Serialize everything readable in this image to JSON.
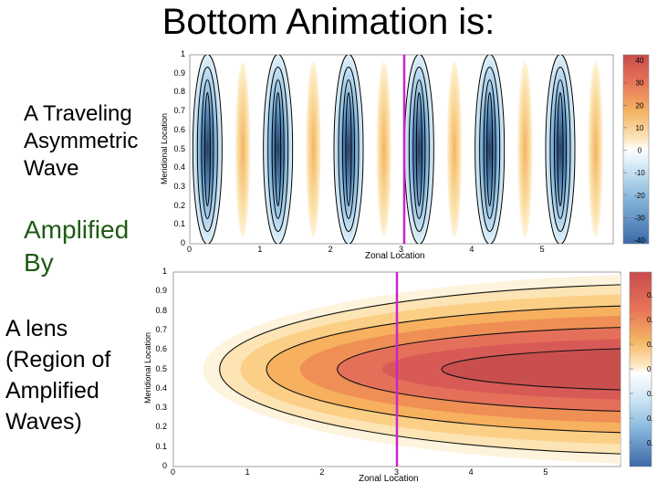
{
  "slide": {
    "title": "Bottom Animation is:",
    "wave_lines": [
      "A Traveling",
      "Asymmetric",
      "Wave"
    ],
    "amplified_lines": [
      "Amplified",
      "By"
    ],
    "lens_lines": [
      "A lens",
      "(Region of",
      "Amplified",
      "Waves)"
    ]
  },
  "colors": {
    "green_text": "#1e5a14",
    "marker": "#cc22cc"
  },
  "top_plot": {
    "xlabel": "Zonal Location",
    "ylabel": "Meridional Location",
    "x_ticks": [
      "0",
      "1",
      "2",
      "3",
      "4",
      "5"
    ],
    "y_ticks": [
      "0",
      "0.1",
      "0.2",
      "0.3",
      "0.4",
      "0.5",
      "0.6",
      "0.7",
      "0.8",
      "0.9",
      "1"
    ],
    "colorbar_ticks": [
      "40",
      "30",
      "20",
      "10",
      "0",
      "-10",
      "-20",
      "-30",
      "-40"
    ],
    "marker_x": 3
  },
  "bottom_plot": {
    "xlabel": "Zonal Location",
    "ylabel": "Meridional Location",
    "x_ticks": [
      "0",
      "1",
      "2",
      "3",
      "4",
      "5"
    ],
    "y_ticks": [
      "0",
      "0.1",
      "0.2",
      "0.3",
      "0.4",
      "0.5",
      "0.6",
      "0.7",
      "0.8",
      "0.9",
      "1"
    ],
    "colorbar_ticks": [
      "0.",
      "0.",
      "0.",
      "0",
      "0.",
      "0.",
      "0."
    ],
    "marker_x": 3
  }
}
